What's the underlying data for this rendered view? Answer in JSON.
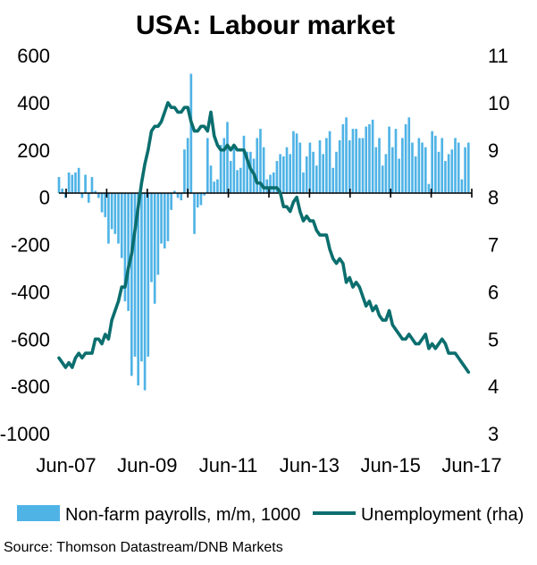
{
  "chart_data": {
    "type": "bar+line",
    "title": "USA: Labour market",
    "source": "Source: Thomson Datastream/DNB Markets",
    "x_ticks": [
      "Jun-07",
      "Jun-09",
      "Jun-11",
      "Jun-13",
      "Jun-15",
      "Jun-17"
    ],
    "x_start": "2007-01",
    "x_end": "2017-06",
    "y_left": {
      "ticks": [
        "600",
        "400",
        "200",
        "0",
        "-200",
        "-400",
        "-600",
        "-800",
        "-1000"
      ],
      "ylim": [
        -1000,
        600
      ]
    },
    "y_right": {
      "ticks": [
        "11",
        "10",
        "9",
        "8",
        "7",
        "6",
        "5",
        "4",
        "3"
      ],
      "ylim": [
        3,
        11
      ]
    },
    "colors": {
      "bars": "#4fb3e6",
      "line": "#0b6e6e",
      "axis": "#000000"
    },
    "legend": {
      "placement": "bottom",
      "bars_label": "Non-farm payrolls, m/m, 1000",
      "line_label": "Unemployment (rha)"
    },
    "series": [
      {
        "name": "Non-farm payrolls, m/m, 1000",
        "type": "bar",
        "axis": "left",
        "start": "2007-01",
        "values": [
          70,
          20,
          -20,
          90,
          80,
          90,
          110,
          -20,
          80,
          -40,
          70,
          10,
          -20,
          -80,
          -100,
          -210,
          -150,
          -170,
          -210,
          -270,
          -450,
          -490,
          -760,
          -680,
          -800,
          -700,
          -820,
          -680,
          -370,
          -460,
          -340,
          -210,
          -230,
          -200,
          -70,
          10,
          -20,
          -30,
          190,
          240,
          520,
          -170,
          -60,
          -50,
          -10,
          240,
          120,
          50,
          60,
          210,
          240,
          310,
          140,
          210,
          100,
          110,
          250,
          180,
          180,
          150,
          240,
          280,
          200,
          60,
          80,
          90,
          140,
          170,
          160,
          200,
          170,
          270,
          260,
          220,
          90,
          160,
          220,
          180,
          120,
          230,
          170,
          240,
          270,
          110,
          180,
          230,
          300,
          330,
          230,
          280,
          280,
          240,
          240,
          290,
          300,
          320,
          200,
          240,
          120,
          170,
          290,
          200,
          280,
          150,
          240,
          300,
          330,
          220,
          160,
          240,
          220,
          200,
          40,
          270,
          250,
          180,
          240,
          140,
          170,
          190,
          240,
          220,
          60,
          200,
          220
        ]
      },
      {
        "name": "Unemployment (rha)",
        "type": "line",
        "axis": "right",
        "start": "2007-01",
        "values": [
          4.6,
          4.5,
          4.4,
          4.5,
          4.4,
          4.6,
          4.7,
          4.6,
          4.7,
          4.7,
          4.7,
          5.0,
          5.0,
          4.9,
          5.1,
          5.0,
          5.4,
          5.6,
          5.8,
          6.1,
          6.1,
          6.5,
          6.8,
          7.3,
          7.8,
          8.3,
          8.7,
          9.0,
          9.4,
          9.5,
          9.5,
          9.6,
          9.8,
          10.0,
          9.9,
          9.9,
          9.8,
          9.8,
          9.9,
          9.9,
          9.6,
          9.4,
          9.4,
          9.5,
          9.5,
          9.4,
          9.8,
          9.3,
          9.1,
          9.0,
          9.0,
          9.1,
          9.0,
          9.1,
          9.0,
          9.0,
          9.0,
          8.8,
          8.6,
          8.5,
          8.3,
          8.3,
          8.2,
          8.2,
          8.2,
          8.2,
          8.2,
          8.1,
          7.8,
          7.8,
          7.7,
          7.9,
          8.0,
          7.7,
          7.5,
          7.6,
          7.5,
          7.5,
          7.3,
          7.2,
          7.2,
          7.2,
          6.9,
          6.7,
          6.6,
          6.7,
          6.6,
          6.2,
          6.3,
          6.1,
          6.2,
          6.1,
          5.9,
          5.7,
          5.8,
          5.6,
          5.7,
          5.5,
          5.4,
          5.4,
          5.6,
          5.3,
          5.2,
          5.1,
          5.0,
          5.0,
          5.1,
          5.0,
          4.9,
          4.9,
          5.0,
          5.1,
          4.8,
          4.9,
          4.8,
          4.9,
          5.0,
          4.9,
          4.7,
          4.7,
          4.7,
          4.6,
          4.5,
          4.4,
          4.3
        ]
      }
    ]
  }
}
